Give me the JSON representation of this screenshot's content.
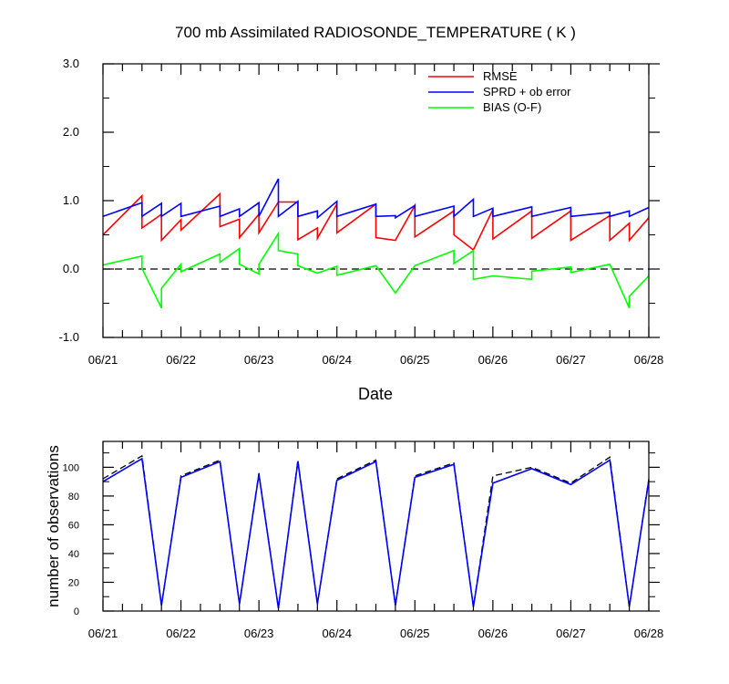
{
  "chart_data": [
    {
      "type": "line",
      "title": "700 mb Assimilated RADIOSONDE_TEMPERATURE ( K )",
      "xlabel": "Date",
      "ylabel": "",
      "x_tick_labels": [
        "06/21",
        "06/22",
        "06/23",
        "06/24",
        "06/25",
        "06/26",
        "06/27",
        "06/28"
      ],
      "y_tick_labels": [
        "3.0",
        "2.0",
        "1.0",
        "0.0",
        "-1.0"
      ],
      "xlim": [
        0,
        7
      ],
      "ylim": [
        -1.0,
        3.0
      ],
      "y_ticks": [
        -1.0,
        0.0,
        1.0,
        2.0,
        3.0
      ],
      "legend_position": "top-right",
      "reference_line": {
        "y": 0.0,
        "style": "dashed",
        "color": "#000000"
      },
      "series": [
        {
          "name": "RMSE",
          "color": "#ff0000",
          "points": [
            [
              0.0,
              0.5
            ],
            [
              0.5,
              1.07
            ],
            [
              0.5,
              0.6
            ],
            [
              0.75,
              0.8
            ],
            [
              0.75,
              0.42
            ],
            [
              1.0,
              0.72
            ],
            [
              1.0,
              0.57
            ],
            [
              1.5,
              1.1
            ],
            [
              1.5,
              0.62
            ],
            [
              1.75,
              0.73
            ],
            [
              1.75,
              0.46
            ],
            [
              2.0,
              0.8
            ],
            [
              2.0,
              0.53
            ],
            [
              2.25,
              0.98
            ],
            [
              2.5,
              0.98
            ],
            [
              2.5,
              0.43
            ],
            [
              2.75,
              0.6
            ],
            [
              2.75,
              0.45
            ],
            [
              3.0,
              0.95
            ],
            [
              3.0,
              0.53
            ],
            [
              3.5,
              0.95
            ],
            [
              3.5,
              0.46
            ],
            [
              3.75,
              0.42
            ],
            [
              4.0,
              0.93
            ],
            [
              4.0,
              0.47
            ],
            [
              4.5,
              0.85
            ],
            [
              4.5,
              0.5
            ],
            [
              4.75,
              0.28
            ],
            [
              5.0,
              0.87
            ],
            [
              5.0,
              0.44
            ],
            [
              5.5,
              0.85
            ],
            [
              5.5,
              0.45
            ],
            [
              6.0,
              0.85
            ],
            [
              6.0,
              0.42
            ],
            [
              6.5,
              0.78
            ],
            [
              6.5,
              0.42
            ],
            [
              6.75,
              0.67
            ],
            [
              6.75,
              0.42
            ],
            [
              7.0,
              0.75
            ]
          ]
        },
        {
          "name": "SPRD + ob error",
          "color": "#0000ff",
          "points": [
            [
              0.0,
              0.77
            ],
            [
              0.5,
              0.97
            ],
            [
              0.5,
              0.77
            ],
            [
              0.75,
              0.96
            ],
            [
              0.75,
              0.77
            ],
            [
              1.0,
              0.96
            ],
            [
              1.0,
              0.77
            ],
            [
              1.5,
              0.92
            ],
            [
              1.5,
              0.77
            ],
            [
              1.75,
              0.88
            ],
            [
              1.75,
              0.77
            ],
            [
              2.0,
              0.97
            ],
            [
              2.0,
              0.77
            ],
            [
              2.25,
              1.32
            ],
            [
              2.25,
              0.77
            ],
            [
              2.5,
              0.99
            ],
            [
              2.5,
              0.77
            ],
            [
              2.75,
              0.85
            ],
            [
              2.75,
              0.75
            ],
            [
              3.0,
              0.99
            ],
            [
              3.0,
              0.77
            ],
            [
              3.5,
              0.95
            ],
            [
              3.5,
              0.77
            ],
            [
              3.75,
              0.78
            ],
            [
              3.75,
              0.75
            ],
            [
              4.0,
              0.93
            ],
            [
              4.0,
              0.77
            ],
            [
              4.5,
              0.92
            ],
            [
              4.5,
              0.77
            ],
            [
              4.75,
              1.02
            ],
            [
              4.75,
              0.77
            ],
            [
              5.0,
              0.89
            ],
            [
              5.0,
              0.77
            ],
            [
              5.5,
              0.91
            ],
            [
              5.5,
              0.77
            ],
            [
              6.0,
              0.9
            ],
            [
              6.0,
              0.77
            ],
            [
              6.5,
              0.83
            ],
            [
              6.5,
              0.77
            ],
            [
              6.75,
              0.85
            ],
            [
              6.75,
              0.77
            ],
            [
              7.0,
              0.9
            ]
          ]
        },
        {
          "name": "BIAS (O-F)",
          "color": "#00ff00",
          "points": [
            [
              0.0,
              0.06
            ],
            [
              0.5,
              0.19
            ],
            [
              0.5,
              0.01
            ],
            [
              0.75,
              -0.57
            ],
            [
              0.75,
              -0.28
            ],
            [
              1.0,
              0.07
            ],
            [
              1.0,
              -0.04
            ],
            [
              1.5,
              0.22
            ],
            [
              1.5,
              0.1
            ],
            [
              1.75,
              0.3
            ],
            [
              1.75,
              0.07
            ],
            [
              2.0,
              -0.07
            ],
            [
              2.0,
              0.07
            ],
            [
              2.25,
              0.52
            ],
            [
              2.25,
              0.27
            ],
            [
              2.5,
              0.22
            ],
            [
              2.5,
              0.05
            ],
            [
              2.75,
              -0.06
            ],
            [
              3.0,
              0.04
            ],
            [
              3.0,
              -0.09
            ],
            [
              3.5,
              0.05
            ],
            [
              3.75,
              -0.35
            ],
            [
              4.0,
              0.05
            ],
            [
              4.5,
              0.27
            ],
            [
              4.5,
              0.08
            ],
            [
              4.75,
              0.27
            ],
            [
              4.75,
              -0.15
            ],
            [
              5.0,
              -0.1
            ],
            [
              5.5,
              -0.15
            ],
            [
              5.5,
              -0.03
            ],
            [
              6.0,
              0.03
            ],
            [
              6.0,
              -0.05
            ],
            [
              6.5,
              0.07
            ],
            [
              6.75,
              -0.57
            ],
            [
              6.75,
              -0.4
            ],
            [
              7.0,
              -0.1
            ]
          ]
        }
      ]
    },
    {
      "type": "line",
      "title": "",
      "xlabel": "",
      "ylabel": "number of observations",
      "x_tick_labels": [
        "06/21",
        "06/22",
        "06/23",
        "06/24",
        "06/25",
        "06/26",
        "06/27",
        "06/28"
      ],
      "y_tick_labels": [
        "0",
        "20",
        "40",
        "60",
        "80",
        "100"
      ],
      "xlim": [
        0,
        7
      ],
      "ylim": [
        0,
        118
      ],
      "y_ticks": [
        0,
        20,
        40,
        60,
        80,
        100
      ],
      "series": [
        {
          "style": "dashed",
          "color": "#000000",
          "points": [
            [
              0.0,
              92
            ],
            [
              0.5,
              108
            ],
            [
              0.75,
              4
            ],
            [
              1.0,
              94
            ],
            [
              1.5,
              105
            ],
            [
              1.75,
              5
            ],
            [
              2.0,
              96
            ],
            [
              2.25,
              2
            ],
            [
              2.5,
              105
            ],
            [
              2.75,
              5
            ],
            [
              3.0,
              92
            ],
            [
              3.5,
              105
            ],
            [
              3.75,
              4
            ],
            [
              4.0,
              94
            ],
            [
              4.5,
              103
            ],
            [
              4.75,
              3
            ],
            [
              5.0,
              94
            ],
            [
              5.5,
              100
            ],
            [
              6.0,
              89
            ],
            [
              6.5,
              107
            ],
            [
              6.75,
              3
            ],
            [
              7.0,
              92
            ]
          ]
        },
        {
          "style": "solid",
          "color": "#0000ff",
          "points": [
            [
              0.0,
              90
            ],
            [
              0.5,
              106
            ],
            [
              0.75,
              4
            ],
            [
              1.0,
              93
            ],
            [
              1.5,
              104
            ],
            [
              1.75,
              5
            ],
            [
              2.0,
              95
            ],
            [
              2.25,
              2
            ],
            [
              2.5,
              104
            ],
            [
              2.75,
              5
            ],
            [
              3.0,
              91
            ],
            [
              3.5,
              104
            ],
            [
              3.75,
              4
            ],
            [
              4.0,
              93
            ],
            [
              4.5,
              102
            ],
            [
              4.75,
              3
            ],
            [
              5.0,
              89
            ],
            [
              5.5,
              99
            ],
            [
              6.0,
              88
            ],
            [
              6.5,
              105
            ],
            [
              6.75,
              3
            ],
            [
              7.0,
              91
            ]
          ]
        }
      ]
    }
  ]
}
